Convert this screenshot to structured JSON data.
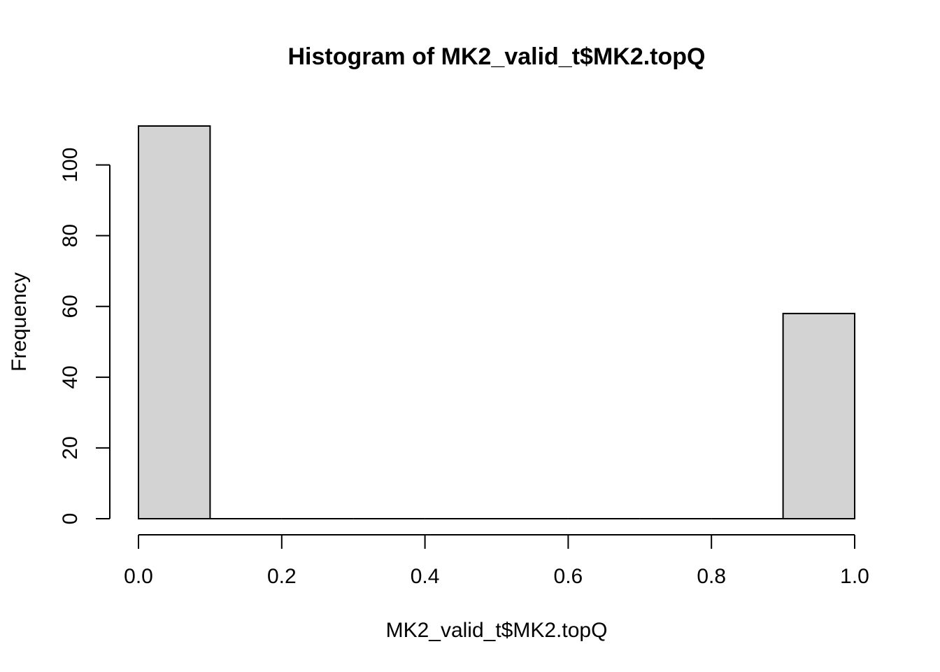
{
  "chart_data": {
    "type": "bar",
    "title": "Histogram of MK2_valid_t$MK2.topQ",
    "xlabel": "MK2_valid_t$MK2.topQ",
    "ylabel": "Frequency",
    "bins": [
      {
        "x0": 0.0,
        "x1": 0.1,
        "count": 111
      },
      {
        "x0": 0.1,
        "x1": 0.2,
        "count": 0
      },
      {
        "x0": 0.2,
        "x1": 0.3,
        "count": 0
      },
      {
        "x0": 0.3,
        "x1": 0.4,
        "count": 0
      },
      {
        "x0": 0.4,
        "x1": 0.5,
        "count": 0
      },
      {
        "x0": 0.5,
        "x1": 0.6,
        "count": 0
      },
      {
        "x0": 0.6,
        "x1": 0.7,
        "count": 0
      },
      {
        "x0": 0.7,
        "x1": 0.8,
        "count": 0
      },
      {
        "x0": 0.8,
        "x1": 0.9,
        "count": 0
      },
      {
        "x0": 0.9,
        "x1": 1.0,
        "count": 58
      }
    ],
    "xlim": [
      0.0,
      1.0
    ],
    "ylim": [
      0,
      111
    ],
    "x_ticks": [
      0.0,
      0.2,
      0.4,
      0.6,
      0.8,
      1.0
    ],
    "x_tick_labels": [
      "0.0",
      "0.2",
      "0.4",
      "0.6",
      "0.8",
      "1.0"
    ],
    "y_ticks": [
      0,
      20,
      40,
      60,
      80,
      100
    ],
    "y_tick_labels": [
      "0",
      "20",
      "40",
      "60",
      "80",
      "100"
    ],
    "grid": false,
    "bar_fill": "#d3d3d3",
    "bar_stroke": "#000000"
  }
}
